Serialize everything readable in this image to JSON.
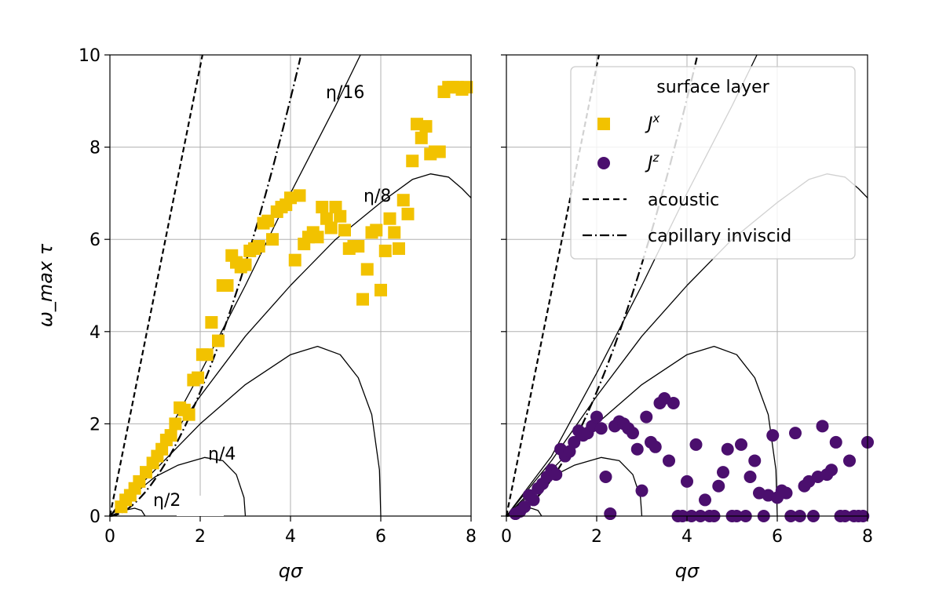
{
  "chart_data": [
    {
      "type": "scatter",
      "panel": "left",
      "xlabel": "qσ",
      "ylabel": "ω_max τ",
      "xlim": [
        0,
        8
      ],
      "ylim": [
        0,
        10
      ],
      "xticks": [
        "0",
        "2",
        "4",
        "6",
        "8"
      ],
      "yticks": [
        "0",
        "2",
        "4",
        "6",
        "8",
        "10"
      ],
      "grid": true,
      "curve_labels": [
        "η/2",
        "η/4",
        "η/8",
        "η/16"
      ],
      "series": [
        {
          "marker": "square",
          "color": "#f2c200",
          "x": [
            0.25,
            0.35,
            0.45,
            0.55,
            0.65,
            0.8,
            0.95,
            1.05,
            1.15,
            1.25,
            1.35,
            1.45,
            1.55,
            1.65,
            1.75,
            1.85,
            1.95,
            2.05,
            2.15,
            2.25,
            2.4,
            2.5,
            2.6,
            2.7,
            2.8,
            2.9,
            3.0,
            3.1,
            3.2,
            3.3,
            3.4,
            3.5,
            3.6,
            3.7,
            3.8,
            3.9,
            4.0,
            4.1,
            4.2,
            4.3,
            4.4,
            4.5,
            4.6,
            4.7,
            4.8,
            4.9,
            5.0,
            5.1,
            5.2,
            5.3,
            5.4,
            5.5,
            5.6,
            5.7,
            5.8,
            5.9,
            6.0,
            6.1,
            6.2,
            6.3,
            6.4,
            6.5,
            6.6,
            6.7,
            6.8,
            6.9,
            7.0,
            7.1,
            7.2,
            7.3,
            7.4,
            7.5,
            7.6,
            7.7,
            7.8,
            7.9
          ],
          "y": [
            0.2,
            0.35,
            0.45,
            0.6,
            0.75,
            0.95,
            1.15,
            1.3,
            1.45,
            1.65,
            1.75,
            2.0,
            2.35,
            2.3,
            2.2,
            2.95,
            3.0,
            3.5,
            3.5,
            4.2,
            3.8,
            5.0,
            5.0,
            5.65,
            5.5,
            5.4,
            5.45,
            5.75,
            5.8,
            5.85,
            6.35,
            6.4,
            6.0,
            6.6,
            6.7,
            6.75,
            6.9,
            5.55,
            6.95,
            5.9,
            6.05,
            6.15,
            6.05,
            6.7,
            6.45,
            6.25,
            6.7,
            6.5,
            6.2,
            5.8,
            5.85,
            5.85,
            4.7,
            5.35,
            6.15,
            6.2,
            4.9,
            5.75,
            6.45,
            6.15,
            5.8,
            6.85,
            6.55,
            7.7,
            8.5,
            8.2,
            8.45,
            7.85,
            7.9,
            7.9,
            9.2,
            9.3,
            9.3,
            9.3,
            9.25,
            9.3
          ]
        }
      ]
    },
    {
      "type": "scatter",
      "panel": "right",
      "xlabel": "qσ",
      "xlim": [
        0,
        8
      ],
      "ylim": [
        0,
        10
      ],
      "xticks": [
        "0",
        "2",
        "4",
        "6",
        "8"
      ],
      "grid": true,
      "legend": {
        "title": "surface layer",
        "placement": "top-right",
        "entries": [
          "J^x",
          "J^z",
          "acoustic",
          "capillary inviscid"
        ]
      },
      "series": [
        {
          "name": "J^z",
          "marker": "circle",
          "color": "#4b0f6e",
          "x": [
            0.2,
            0.3,
            0.4,
            0.5,
            0.6,
            0.7,
            0.8,
            0.9,
            1.0,
            1.1,
            1.2,
            1.3,
            1.4,
            1.5,
            1.6,
            1.7,
            1.8,
            1.9,
            2.0,
            2.1,
            2.2,
            2.3,
            2.4,
            2.5,
            2.6,
            2.7,
            2.8,
            2.9,
            3.0,
            3.1,
            3.2,
            3.3,
            3.4,
            3.5,
            3.6,
            3.7,
            3.8,
            3.9,
            4.0,
            4.1,
            4.2,
            4.3,
            4.4,
            4.5,
            4.6,
            4.7,
            4.8,
            4.9,
            5.0,
            5.1,
            5.2,
            5.3,
            5.4,
            5.5,
            5.6,
            5.7,
            5.8,
            5.9,
            6.0,
            6.1,
            6.2,
            6.3,
            6.4,
            6.5,
            6.6,
            6.7,
            6.8,
            6.9,
            7.0,
            7.1,
            7.2,
            7.3,
            7.4,
            7.5,
            7.6,
            7.7,
            7.8,
            7.9,
            8.0
          ],
          "y": [
            0.05,
            0.1,
            0.2,
            0.45,
            0.35,
            0.6,
            0.7,
            0.85,
            1.0,
            0.9,
            1.45,
            1.3,
            1.4,
            1.6,
            1.85,
            1.75,
            1.8,
            1.95,
            2.15,
            1.9,
            0.85,
            0.05,
            1.95,
            2.05,
            2.0,
            1.9,
            1.8,
            1.45,
            0.55,
            2.15,
            1.6,
            1.5,
            2.45,
            2.55,
            1.2,
            2.45,
            0.0,
            0.0,
            0.75,
            0.0,
            1.55,
            0.0,
            0.35,
            0.0,
            0.0,
            0.65,
            0.95,
            1.45,
            0.0,
            0.0,
            1.55,
            0.0,
            0.85,
            1.2,
            0.5,
            0.0,
            0.45,
            1.75,
            0.4,
            0.55,
            0.5,
            0.0,
            1.8,
            0.0,
            0.65,
            0.75,
            0.0,
            0.85,
            1.95,
            0.9,
            1.0,
            1.6,
            0.0,
            0.0,
            1.2,
            0.0,
            0.0,
            0.0,
            1.6
          ]
        }
      ]
    }
  ]
}
